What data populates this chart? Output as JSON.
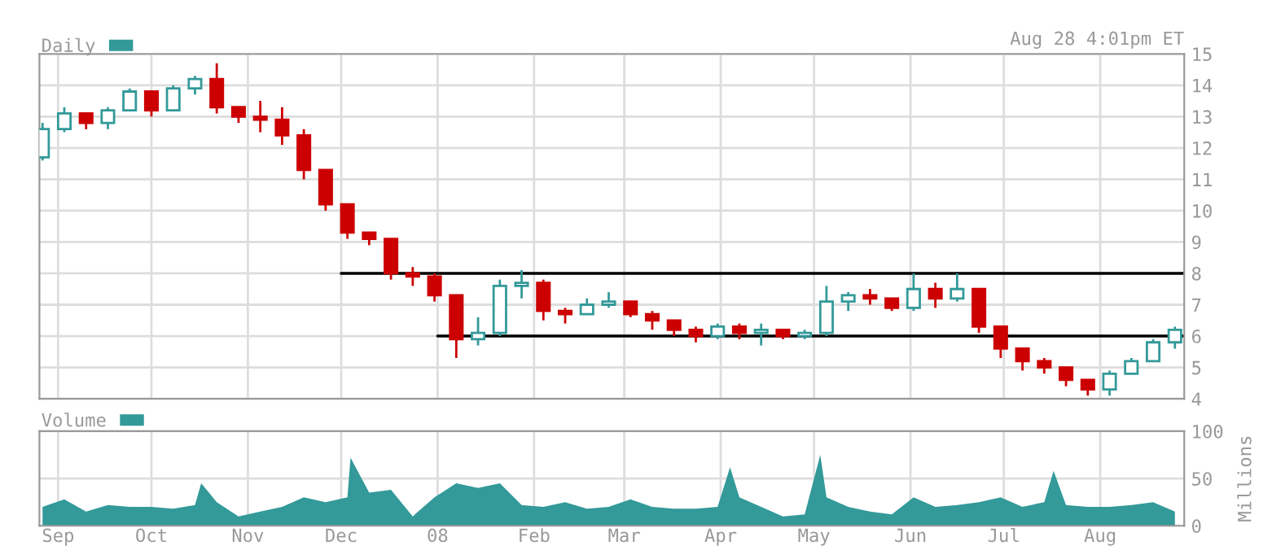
{
  "chart_data": [
    {
      "type": "candlestick",
      "legend": "top left",
      "grid": true,
      "tick_labels": "y",
      "annotations": [
        "Aug 28 4:01pm ET"
      ],
      "xlim": [
        "2007-08-26",
        "2008-08-28"
      ],
      "xticks": [
        {
          "value": "2007-09-01",
          "label": null
        },
        {
          "value": "2007-10-01",
          "label": null
        },
        {
          "value": "2007-11-01",
          "label": null
        },
        {
          "value": "2007-12-01",
          "label": null
        },
        {
          "value": "2008-01-01",
          "label": null
        },
        {
          "value": "2008-02-01",
          "label": null
        },
        {
          "value": "2008-03-01",
          "label": null
        },
        {
          "value": "2008-04-01",
          "label": null
        },
        {
          "value": "2008-05-01",
          "label": null
        },
        {
          "value": "2008-06-01",
          "label": null
        },
        {
          "value": "2008-07-01",
          "label": null
        },
        {
          "value": "2008-08-01",
          "label": null
        }
      ],
      "ylim": [
        4,
        15
      ],
      "yticks": [
        4,
        5,
        6,
        7,
        8,
        9,
        10,
        11,
        12,
        13,
        14,
        15
      ],
      "series": [
        {
          "name": "Daily",
          "color": "#339999",
          "type": "candlestick",
          "x": [
            "2007-08-27",
            "2007-09-03",
            "2007-09-10",
            "2007-09-17",
            "2007-09-24",
            "2007-10-01",
            "2007-10-08",
            "2007-10-15",
            "2007-10-22",
            "2007-10-29",
            "2007-11-05",
            "2007-11-12",
            "2007-11-19",
            "2007-11-26",
            "2007-12-03",
            "2007-12-10",
            "2007-12-17",
            "2007-12-24",
            "2007-12-31",
            "2008-01-07",
            "2008-01-14",
            "2008-01-21",
            "2008-01-28",
            "2008-02-04",
            "2008-02-11",
            "2008-02-18",
            "2008-02-25",
            "2008-03-03",
            "2008-03-10",
            "2008-03-17",
            "2008-03-24",
            "2008-03-31",
            "2008-04-07",
            "2008-04-14",
            "2008-04-21",
            "2008-04-28",
            "2008-05-05",
            "2008-05-12",
            "2008-05-19",
            "2008-05-26",
            "2008-06-02",
            "2008-06-09",
            "2008-06-16",
            "2008-06-23",
            "2008-06-30",
            "2008-07-07",
            "2008-07-14",
            "2008-07-21",
            "2008-07-28",
            "2008-08-04",
            "2008-08-11",
            "2008-08-18",
            "2008-08-25"
          ],
          "ohlc": [
            [
              11.7,
              12.8,
              11.6,
              12.6
            ],
            [
              12.6,
              13.3,
              12.5,
              13.1
            ],
            [
              13.1,
              13.1,
              12.6,
              12.8
            ],
            [
              12.8,
              13.3,
              12.6,
              13.2
            ],
            [
              13.2,
              13.9,
              13.2,
              13.8
            ],
            [
              13.8,
              13.8,
              13.0,
              13.2
            ],
            [
              13.2,
              14.0,
              13.2,
              13.9
            ],
            [
              13.9,
              14.3,
              13.7,
              14.2
            ],
            [
              14.2,
              14.7,
              13.1,
              13.3
            ],
            [
              13.3,
              13.3,
              12.8,
              13.0
            ],
            [
              13.0,
              13.5,
              12.5,
              12.9
            ],
            [
              12.9,
              13.3,
              12.1,
              12.4
            ],
            [
              12.4,
              12.6,
              11.0,
              11.3
            ],
            [
              11.3,
              11.3,
              10.0,
              10.2
            ],
            [
              10.2,
              10.2,
              9.1,
              9.3
            ],
            [
              9.3,
              9.3,
              8.9,
              9.1
            ],
            [
              9.1,
              9.1,
              7.8,
              8.0
            ],
            [
              8.0,
              8.2,
              7.6,
              7.9
            ],
            [
              7.9,
              8.0,
              7.1,
              7.3
            ],
            [
              7.3,
              7.3,
              5.3,
              5.9
            ],
            [
              5.9,
              6.6,
              5.7,
              6.1
            ],
            [
              6.1,
              7.8,
              6.0,
              7.6
            ],
            [
              7.6,
              8.1,
              7.2,
              7.7
            ],
            [
              7.7,
              7.8,
              6.5,
              6.8
            ],
            [
              6.8,
              6.9,
              6.4,
              6.7
            ],
            [
              6.7,
              7.2,
              6.7,
              7.0
            ],
            [
              7.0,
              7.4,
              6.9,
              7.1
            ],
            [
              7.1,
              7.1,
              6.6,
              6.7
            ],
            [
              6.7,
              6.8,
              6.2,
              6.5
            ],
            [
              6.5,
              6.5,
              6.0,
              6.2
            ],
            [
              6.2,
              6.3,
              5.8,
              6.0
            ],
            [
              6.0,
              6.4,
              5.9,
              6.3
            ],
            [
              6.3,
              6.4,
              5.9,
              6.1
            ],
            [
              6.1,
              6.4,
              5.7,
              6.2
            ],
            [
              6.2,
              6.2,
              5.9,
              6.0
            ],
            [
              6.0,
              6.2,
              5.9,
              6.1
            ],
            [
              6.1,
              7.6,
              6.0,
              7.1
            ],
            [
              7.1,
              7.4,
              6.8,
              7.3
            ],
            [
              7.3,
              7.5,
              7.0,
              7.2
            ],
            [
              7.2,
              7.2,
              6.8,
              6.9
            ],
            [
              6.9,
              8.0,
              6.8,
              7.5
            ],
            [
              7.5,
              7.7,
              6.9,
              7.2
            ],
            [
              7.2,
              8.0,
              7.1,
              7.5
            ],
            [
              7.5,
              7.5,
              6.1,
              6.3
            ],
            [
              6.3,
              6.3,
              5.3,
              5.6
            ],
            [
              5.6,
              5.6,
              4.9,
              5.2
            ],
            [
              5.2,
              5.3,
              4.8,
              5.0
            ],
            [
              5.0,
              5.0,
              4.4,
              4.6
            ],
            [
              4.6,
              4.6,
              4.1,
              4.3
            ],
            [
              4.3,
              4.9,
              4.1,
              4.8
            ],
            [
              4.8,
              5.3,
              4.8,
              5.2
            ],
            [
              5.2,
              5.9,
              5.2,
              5.8
            ],
            [
              5.8,
              6.3,
              5.6,
              6.2
            ]
          ],
          "colors": [
            "#339999",
            "#339999",
            "#cc0000",
            "#339999",
            "#339999",
            "#cc0000",
            "#339999",
            "#339999",
            "#cc0000",
            "#cc0000",
            "#cc0000",
            "#cc0000",
            "#cc0000",
            "#cc0000",
            "#cc0000",
            "#cc0000",
            "#cc0000",
            "#cc0000",
            "#cc0000",
            "#cc0000",
            "#339999",
            "#339999",
            "#339999",
            "#cc0000",
            "#cc0000",
            "#339999",
            "#339999",
            "#cc0000",
            "#cc0000",
            "#cc0000",
            "#cc0000",
            "#339999",
            "#cc0000",
            "#339999",
            "#cc0000",
            "#339999",
            "#339999",
            "#339999",
            "#cc0000",
            "#cc0000",
            "#339999",
            "#cc0000",
            "#339999",
            "#cc0000",
            "#cc0000",
            "#cc0000",
            "#cc0000",
            "#cc0000",
            "#cc0000",
            "#339999",
            "#339999",
            "#339999",
            "#339999"
          ]
        },
        {
          "type": "line",
          "color": "#000000",
          "x": [
            "2007-12-01",
            "2008-08-28"
          ],
          "values": [
            8,
            8
          ]
        },
        {
          "type": "line",
          "color": "#000000",
          "x": [
            "2008-01-01",
            "2008-08-28"
          ],
          "values": [
            6,
            6
          ]
        }
      ]
    },
    {
      "type": "area",
      "legend": "top left",
      "grid": true,
      "ylabel": "Millions",
      "xlim": [
        "2007-08-26",
        "2008-08-28"
      ],
      "xticks": [
        {
          "value": "2007-09-01",
          "label": "Sep"
        },
        {
          "value": "2007-10-01",
          "label": "Oct"
        },
        {
          "value": "2007-11-01",
          "label": "Nov"
        },
        {
          "value": "2007-12-01",
          "label": "Dec"
        },
        {
          "value": "2008-01-01",
          "label": "08"
        },
        {
          "value": "2008-02-01",
          "label": "Feb"
        },
        {
          "value": "2008-03-01",
          "label": "Mar"
        },
        {
          "value": "2008-04-01",
          "label": "Apr"
        },
        {
          "value": "2008-05-01",
          "label": "May"
        },
        {
          "value": "2008-06-01",
          "label": "Jun"
        },
        {
          "value": "2008-07-01",
          "label": "Jul"
        },
        {
          "value": "2008-08-01",
          "label": "Aug"
        }
      ],
      "ylim": [
        0,
        100
      ],
      "yticks": [
        0,
        50,
        100
      ],
      "series": [
        {
          "name": "Volume",
          "color": "#339999",
          "x": [
            "2007-08-27",
            "2007-09-03",
            "2007-09-10",
            "2007-09-17",
            "2007-09-24",
            "2007-10-01",
            "2007-10-08",
            "2007-10-15",
            "2007-10-17",
            "2007-10-22",
            "2007-10-29",
            "2007-11-05",
            "2007-11-12",
            "2007-11-19",
            "2007-11-26",
            "2007-12-03",
            "2007-12-04",
            "2007-12-10",
            "2007-12-17",
            "2007-12-24",
            "2007-12-31",
            "2008-01-07",
            "2008-01-14",
            "2008-01-21",
            "2008-01-28",
            "2008-02-04",
            "2008-02-11",
            "2008-02-18",
            "2008-02-25",
            "2008-03-03",
            "2008-03-10",
            "2008-03-17",
            "2008-03-24",
            "2008-03-31",
            "2008-04-04",
            "2008-04-07",
            "2008-04-14",
            "2008-04-21",
            "2008-04-28",
            "2008-05-03",
            "2008-05-05",
            "2008-05-12",
            "2008-05-19",
            "2008-05-26",
            "2008-06-02",
            "2008-06-09",
            "2008-06-16",
            "2008-06-23",
            "2008-06-30",
            "2008-07-07",
            "2008-07-14",
            "2008-07-17",
            "2008-07-21",
            "2008-07-28",
            "2008-08-04",
            "2008-08-11",
            "2008-08-18",
            "2008-08-25"
          ],
          "values": [
            20,
            28,
            15,
            22,
            20,
            20,
            18,
            22,
            45,
            25,
            10,
            15,
            20,
            30,
            25,
            30,
            72,
            35,
            38,
            10,
            30,
            45,
            40,
            45,
            22,
            20,
            25,
            18,
            20,
            28,
            20,
            18,
            18,
            20,
            62,
            30,
            20,
            10,
            12,
            75,
            30,
            20,
            15,
            12,
            30,
            20,
            22,
            25,
            30,
            20,
            25,
            58,
            22,
            20,
            20,
            22,
            25,
            15
          ]
        }
      ]
    }
  ]
}
